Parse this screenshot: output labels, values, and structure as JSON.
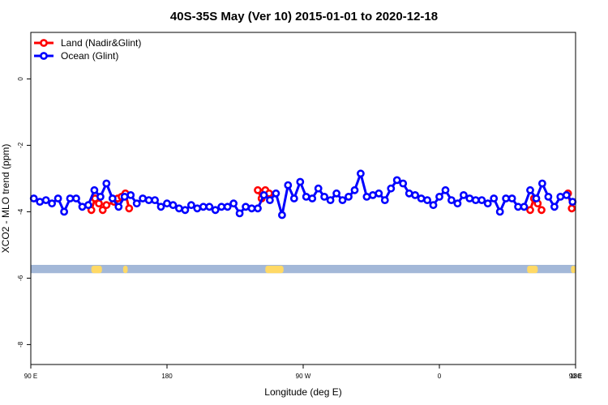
{
  "chart_data": {
    "type": "line",
    "title": "40S-35S May (Ver 10)   2015-01-01 to 2020-12-18",
    "xlabel": "Longitude (deg E)",
    "ylabel": "XCO2 - MLO trend (ppm)",
    "xlim": [
      90,
      450
    ],
    "ylim": [
      -8.6,
      1.4
    ],
    "x_ticks": [
      {
        "value": 90,
        "label": "90 E"
      },
      {
        "value": 180,
        "label": "180"
      },
      {
        "value": 270,
        "label": "90 W"
      },
      {
        "value": 360,
        "label": "0"
      },
      {
        "value": 450,
        "label": "90 E"
      },
      {
        "value": 540,
        "label": "180"
      }
    ],
    "y_ticks": [
      0,
      -2,
      -4,
      -6,
      -8
    ],
    "legend_position": "top-left",
    "series": [
      {
        "name": "Land (Nadir&Glint)",
        "color": "#ff0000",
        "segments": [
          [
            [
              130,
              -3.95
            ],
            [
              132.5,
              -3.6
            ],
            [
              135,
              -3.75
            ],
            [
              137.5,
              -3.95
            ],
            [
              140,
              -3.8
            ],
            [
              145,
              -3.7
            ],
            [
              147.5,
              -3.6
            ],
            [
              150,
              -3.55
            ],
            [
              152.5,
              -3.45
            ],
            [
              155,
              -3.9
            ]
          ],
          [
            [
              240,
              -3.35
            ],
            [
              242.5,
              -3.6
            ],
            [
              245,
              -3.35
            ],
            [
              247.5,
              -3.45
            ]
          ],
          [
            [
              420,
              -3.95
            ],
            [
              422.5,
              -3.6
            ],
            [
              425,
              -3.75
            ],
            [
              427.5,
              -3.95
            ]
          ],
          [
            [
              445,
              -3.45
            ],
            [
              447.5,
              -3.9
            ]
          ]
        ]
      },
      {
        "name": "Ocean (Glint)",
        "color": "#0000ff",
        "segments": [
          [
            [
              92,
              -3.6
            ],
            [
              96,
              -3.7
            ],
            [
              100,
              -3.65
            ],
            [
              104,
              -3.75
            ],
            [
              108,
              -3.6
            ],
            [
              112,
              -4.0
            ],
            [
              116,
              -3.6
            ],
            [
              120,
              -3.6
            ],
            [
              124,
              -3.85
            ],
            [
              128,
              -3.8
            ],
            [
              132,
              -3.35
            ],
            [
              136,
              -3.55
            ],
            [
              140,
              -3.15
            ],
            [
              144,
              -3.6
            ],
            [
              148,
              -3.85
            ],
            [
              152,
              -3.55
            ],
            [
              156,
              -3.5
            ],
            [
              160,
              -3.75
            ],
            [
              164,
              -3.6
            ],
            [
              168,
              -3.65
            ],
            [
              172,
              -3.65
            ],
            [
              176,
              -3.85
            ],
            [
              180,
              -3.75
            ],
            [
              184,
              -3.8
            ],
            [
              188,
              -3.9
            ],
            [
              192,
              -3.95
            ],
            [
              196,
              -3.8
            ],
            [
              200,
              -3.9
            ],
            [
              204,
              -3.85
            ],
            [
              208,
              -3.85
            ],
            [
              212,
              -3.95
            ],
            [
              216,
              -3.85
            ],
            [
              220,
              -3.85
            ],
            [
              224,
              -3.75
            ],
            [
              228,
              -4.05
            ],
            [
              232,
              -3.85
            ],
            [
              236,
              -3.9
            ],
            [
              240,
              -3.9
            ],
            [
              244,
              -3.5
            ],
            [
              248,
              -3.65
            ],
            [
              252,
              -3.45
            ],
            [
              256,
              -4.1
            ],
            [
              260,
              -3.2
            ],
            [
              264,
              -3.6
            ],
            [
              268,
              -3.1
            ],
            [
              272,
              -3.55
            ],
            [
              276,
              -3.6
            ],
            [
              280,
              -3.3
            ],
            [
              284,
              -3.55
            ],
            [
              288,
              -3.65
            ],
            [
              292,
              -3.45
            ],
            [
              296,
              -3.65
            ],
            [
              300,
              -3.55
            ],
            [
              304,
              -3.35
            ],
            [
              308,
              -2.85
            ],
            [
              312,
              -3.55
            ],
            [
              316,
              -3.5
            ],
            [
              320,
              -3.45
            ],
            [
              324,
              -3.65
            ],
            [
              328,
              -3.3
            ],
            [
              332,
              -3.05
            ],
            [
              336,
              -3.15
            ],
            [
              340,
              -3.45
            ],
            [
              344,
              -3.5
            ],
            [
              348,
              -3.6
            ],
            [
              352,
              -3.65
            ],
            [
              356,
              -3.8
            ],
            [
              360,
              -3.55
            ],
            [
              364,
              -3.35
            ],
            [
              368,
              -3.65
            ],
            [
              372,
              -3.75
            ],
            [
              376,
              -3.5
            ],
            [
              380,
              -3.6
            ],
            [
              384,
              -3.65
            ],
            [
              388,
              -3.65
            ],
            [
              392,
              -3.75
            ],
            [
              396,
              -3.6
            ],
            [
              400,
              -4.0
            ],
            [
              404,
              -3.6
            ],
            [
              408,
              -3.6
            ],
            [
              412,
              -3.85
            ],
            [
              416,
              -3.85
            ],
            [
              420,
              -3.35
            ],
            [
              424,
              -3.6
            ],
            [
              428,
              -3.15
            ],
            [
              432,
              -3.55
            ],
            [
              436,
              -3.85
            ],
            [
              440,
              -3.55
            ],
            [
              444,
              -3.5
            ],
            [
              448,
              -3.7
            ]
          ]
        ]
      }
    ],
    "land_band": {
      "y_top": -5.6,
      "y_bottom": -5.85,
      "ocean_color": "#a3b8d8",
      "land_color": "#ffd966",
      "land_spans": [
        [
          130,
          137
        ],
        [
          151,
          154
        ],
        [
          245,
          257
        ],
        [
          418,
          425
        ],
        [
          447,
          450
        ]
      ]
    }
  }
}
